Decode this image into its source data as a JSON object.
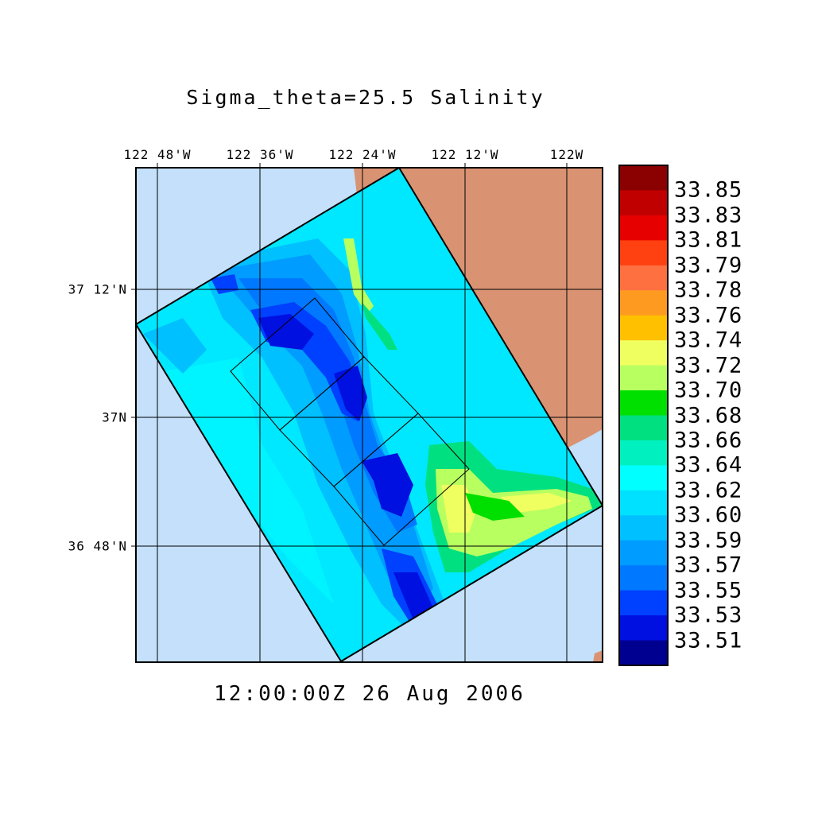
{
  "title": "Sigma_theta=25.5 Salinity",
  "timestamp": "12:00:00Z  26 Aug 2006",
  "map": {
    "lon_ticks": [
      "122 48'W",
      "122 36'W",
      "122 24'W",
      "122 12'W",
      "122W"
    ],
    "lat_ticks": [
      "37 12'N",
      "37N",
      "36 48'N"
    ],
    "colors": {
      "ocean_outside_domain": "#c4e0fa",
      "land": "#d99373",
      "grid": "#000000"
    }
  },
  "colorbar": {
    "labels": [
      "33.85",
      "33.83",
      "33.81",
      "33.79",
      "33.78",
      "33.76",
      "33.74",
      "33.72",
      "33.70",
      "33.68",
      "33.66",
      "33.64",
      "33.62",
      "33.60",
      "33.59",
      "33.57",
      "33.55",
      "33.53",
      "33.51"
    ],
    "colors": [
      "#8b0000",
      "#c00000",
      "#e60000",
      "#ff4010",
      "#ff7040",
      "#ff9a20",
      "#ffc000",
      "#f0ff60",
      "#b8ff60",
      "#00e000",
      "#00e080",
      "#00f0c0",
      "#00ffff",
      "#00e0ff",
      "#00c0ff",
      "#009cff",
      "#0078ff",
      "#0040ff",
      "#0010e0",
      "#000090"
    ]
  }
}
